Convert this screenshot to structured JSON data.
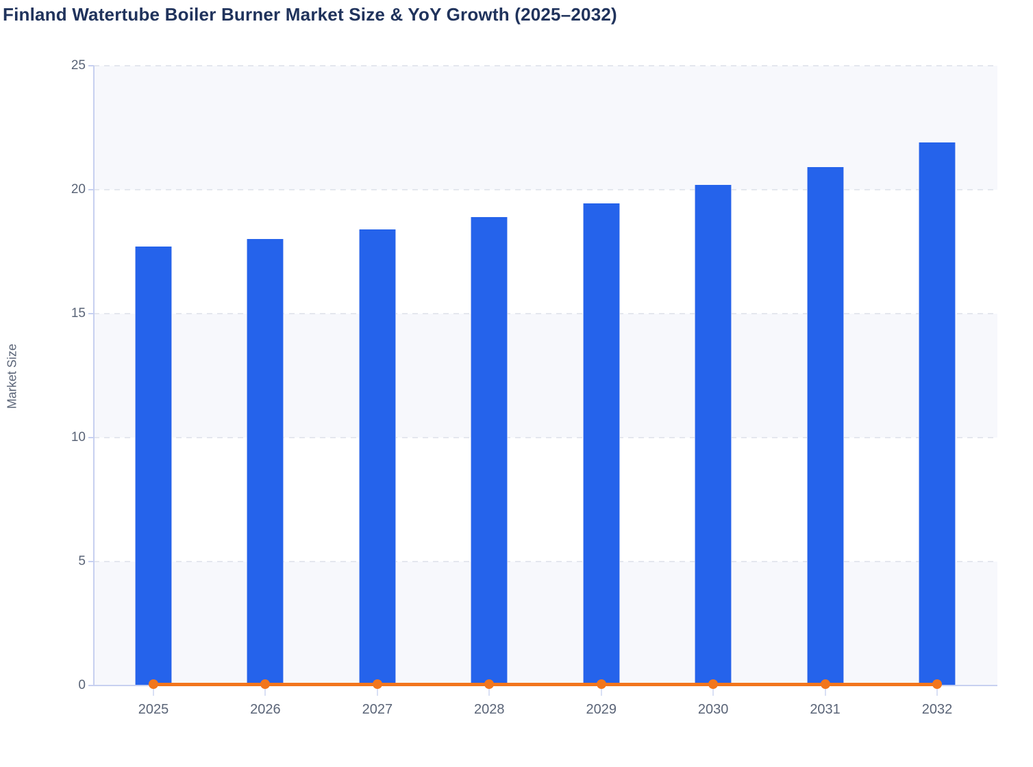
{
  "chart_data": {
    "type": "bar+line",
    "title": "Finland Watertube Boiler Burner Market Size & YoY Growth (2025–2032)",
    "categories": [
      "2025",
      "2026",
      "2027",
      "2028",
      "2029",
      "2030",
      "2031",
      "2032"
    ],
    "series": [
      {
        "name": "Market Size",
        "type": "bar",
        "color": "#2563eb",
        "values": [
          17.7,
          18.0,
          18.4,
          18.9,
          19.45,
          20.2,
          20.9,
          21.9
        ]
      },
      {
        "name": "YoY Growth",
        "type": "line",
        "color": "#f2761d",
        "values": [
          0.05,
          0.05,
          0.05,
          0.05,
          0.05,
          0.05,
          0.05,
          0.05
        ]
      }
    ],
    "xlabel": "",
    "ylabel": "Market Size",
    "ylim": [
      0,
      25
    ],
    "y_ticks": [
      0,
      5,
      10,
      15,
      20,
      25
    ],
    "grid": "horizontal-dashed",
    "band_fill": "alternating-rows",
    "legend": "none"
  },
  "colors": {
    "title": "#20335c",
    "bar": "#2563eb",
    "line": "#f2761d",
    "axis": "#c7d0f0",
    "gridline": "#e4e7ee",
    "tick_label": "#5a6477",
    "band": "#f7f8fc",
    "background": "#ffffff"
  }
}
